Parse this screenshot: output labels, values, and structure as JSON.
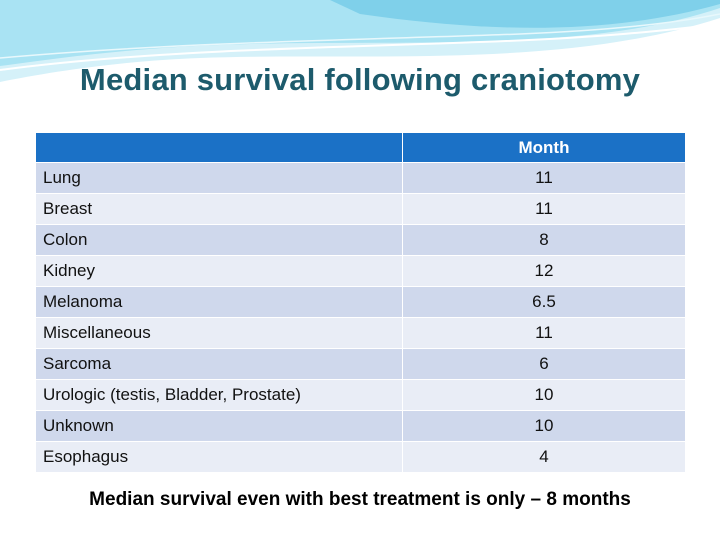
{
  "slide": {
    "title": "Median survival following craniotomy",
    "footer": "Median survival even with best treatment is only – 8 months"
  },
  "table": {
    "headers": [
      "",
      "Month"
    ],
    "rows": [
      {
        "label": "Lung",
        "value": "11"
      },
      {
        "label": "Breast",
        "value": "11"
      },
      {
        "label": "Colon",
        "value": "8"
      },
      {
        "label": "Kidney",
        "value": "12"
      },
      {
        "label": "Melanoma",
        "value": "6.5"
      },
      {
        "label": "Miscellaneous",
        "value": "11"
      },
      {
        "label": "Sarcoma",
        "value": "6"
      },
      {
        "label": "Urologic (testis, Bladder, Prostate)",
        "value": "10"
      },
      {
        "label": "Unknown",
        "value": "10"
      },
      {
        "label": "Esophagus",
        "value": "4"
      }
    ]
  },
  "colors": {
    "title": "#1d5b6c",
    "header_bg": "#1b71c6",
    "row_odd": "#cfd8ec",
    "row_even": "#e9edf6",
    "wave_light": "#d5f1f9",
    "wave_mid": "#7fd0ea"
  }
}
